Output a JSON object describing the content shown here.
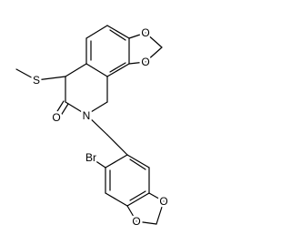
{
  "atoms": [
    {
      "label": "O"
    },
    {
      "label": "O"
    },
    {
      "label": "S"
    },
    {
      "label": "O"
    },
    {
      "label": "N"
    },
    {
      "label": "Br"
    },
    {
      "label": "O"
    },
    {
      "label": "O"
    }
  ]
}
